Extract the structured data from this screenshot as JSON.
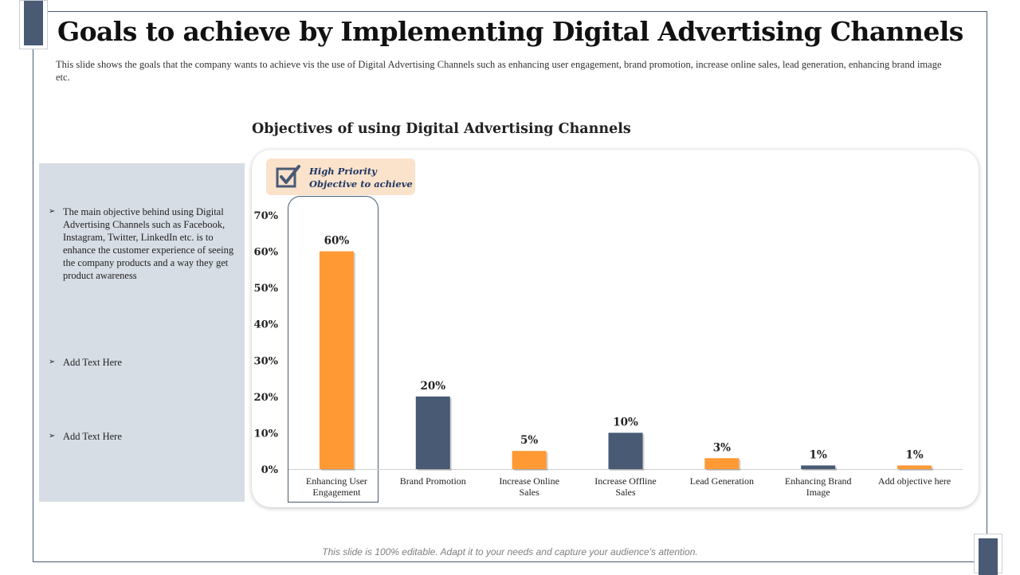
{
  "slide": {
    "title": "Goals to achieve by Implementing Digital Advertising Channels",
    "subtitle": "This slide shows the goals that the company wants to achieve vis the use of Digital Advertising Channels such as enhancing  user engagement,  brand promotion, increase online sales, lead generation, enhancing  brand  image etc.",
    "footer": "This slide is 100% editable. Adapt it to your needs and capture your audience's attention."
  },
  "left_panel": {
    "items": [
      {
        "bullet": "➢",
        "text": "The main objective behind using Digital Advertising Channels such as Facebook, Instagram, Twitter, LinkedIn etc. is to enhance the customer experience of seeing the company products and a way they get product awareness"
      },
      {
        "bullet": "➢",
        "text": "Add Text Here"
      },
      {
        "bullet": "➢",
        "text": "Add Text Here"
      }
    ]
  },
  "priority": {
    "label_line1": "High Priority",
    "label_line2": "Objective to achieve",
    "icon": "checkbox-icon"
  },
  "colors": {
    "orange": "#ff9933",
    "navy": "#485a74",
    "panel": "#d6dde4",
    "priority_bg": "#fbe2cb"
  },
  "chart_data": {
    "type": "bar",
    "title": "Objectives  of using Digital Advertising Channels",
    "categories": [
      "Enhancing User Engagement",
      "Brand Promotion",
      "Increase Online Sales",
      "Increase Offline Sales",
      "Lead Generation",
      "Enhancing Brand Image",
      "Add objective here"
    ],
    "values": [
      60,
      20,
      5,
      10,
      3,
      1,
      1
    ],
    "value_labels": [
      "60%",
      "20%",
      "5%",
      "10%",
      "3%",
      "1%",
      "1%"
    ],
    "bar_colors": [
      "#ff9933",
      "#485a74",
      "#ff9933",
      "#485a74",
      "#ff9933",
      "#485a74",
      "#ff9933"
    ],
    "yticks": [
      "0%",
      "10%",
      "20%",
      "30%",
      "40%",
      "50%",
      "60%",
      "70%"
    ],
    "ylim": [
      0,
      70
    ],
    "grid": false,
    "highlighted_category": "Enhancing User Engagement"
  }
}
